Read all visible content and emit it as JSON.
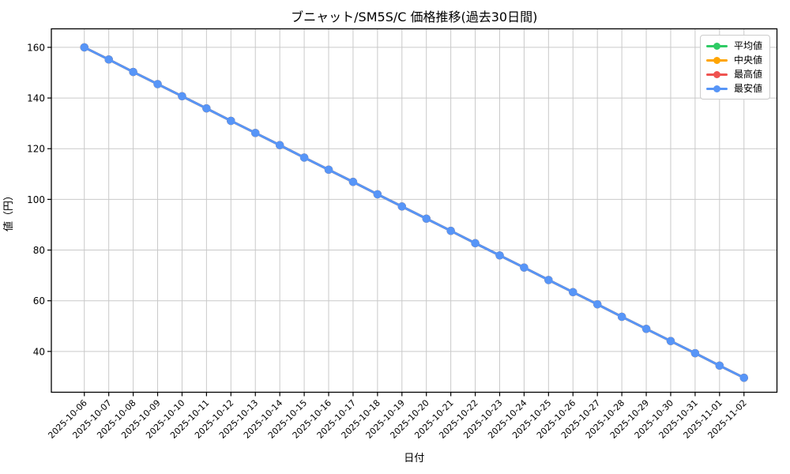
{
  "chart_data": {
    "type": "line",
    "title": "ブニャット/SM5S/C 価格推移(過去30日間)",
    "xlabel": "日付",
    "ylabel": "値（円）",
    "x": [
      "2025-10-06",
      "2025-10-07",
      "2025-10-08",
      "2025-10-09",
      "2025-10-10",
      "2025-10-11",
      "2025-10-12",
      "2025-10-13",
      "2025-10-14",
      "2025-10-15",
      "2025-10-16",
      "2025-10-17",
      "2025-10-18",
      "2025-10-19",
      "2025-10-20",
      "2025-10-21",
      "2025-10-22",
      "2025-10-23",
      "2025-10-24",
      "2025-10-25",
      "2025-10-26",
      "2025-10-27",
      "2025-10-28",
      "2025-10-29",
      "2025-10-30",
      "2025-10-31",
      "2025-11-01",
      "2025-11-02"
    ],
    "series": [
      {
        "key": "mean",
        "name": "平均値",
        "color": "#2fcb65",
        "values": [
          160.0,
          155.2,
          150.3,
          145.5,
          140.7,
          135.9,
          131.0,
          126.2,
          121.4,
          116.5,
          111.7,
          106.9,
          102.0,
          97.2,
          92.4,
          87.6,
          82.7,
          77.9,
          73.1,
          68.2,
          63.4,
          58.6,
          53.7,
          48.9,
          44.1,
          39.3,
          34.4,
          29.6
        ]
      },
      {
        "key": "median",
        "name": "中央値",
        "color": "#ffa502",
        "values": [
          160.0,
          155.2,
          150.3,
          145.5,
          140.7,
          135.9,
          131.0,
          126.2,
          121.4,
          116.5,
          111.7,
          106.9,
          102.0,
          97.2,
          92.4,
          87.6,
          82.7,
          77.9,
          73.1,
          68.2,
          63.4,
          58.6,
          53.7,
          48.9,
          44.1,
          39.3,
          34.4,
          29.6
        ]
      },
      {
        "key": "max",
        "name": "最高値",
        "color": "#ef5350",
        "values": [
          160.0,
          155.2,
          150.3,
          145.5,
          140.7,
          135.9,
          131.0,
          126.2,
          121.4,
          116.5,
          111.7,
          106.9,
          102.0,
          97.2,
          92.4,
          87.6,
          82.7,
          77.9,
          73.1,
          68.2,
          63.4,
          58.6,
          53.7,
          48.9,
          44.1,
          39.3,
          34.4,
          29.6
        ]
      },
      {
        "key": "min",
        "name": "最安値",
        "color": "#5795f7",
        "values": [
          160.0,
          155.2,
          150.3,
          145.5,
          140.7,
          135.9,
          131.0,
          126.2,
          121.4,
          116.5,
          111.7,
          106.9,
          102.0,
          97.2,
          92.4,
          87.6,
          82.7,
          77.9,
          73.1,
          68.2,
          63.4,
          58.6,
          53.7,
          48.9,
          44.1,
          39.3,
          34.4,
          29.6
        ]
      }
    ],
    "yticks": [
      40,
      60,
      80,
      100,
      120,
      140,
      160
    ],
    "ylim": [
      23.9,
      167.3
    ],
    "grid": true,
    "legend_position": "upper-right",
    "style": {
      "grid_color": "#c9c9c9",
      "spine_color": "#000000",
      "background": "#ffffff"
    }
  }
}
